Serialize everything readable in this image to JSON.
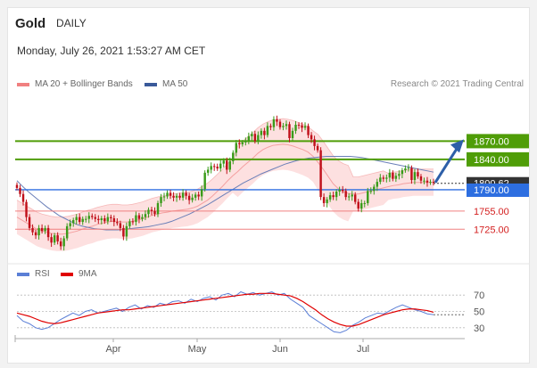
{
  "header": {
    "instrument": "Gold",
    "period": "DAILY",
    "datetime": "Monday, July 26, 2021 1:53:27 AM CET",
    "credit": "Research © 2021 Trading Central"
  },
  "legend_main": [
    {
      "label": "MA 20 + Bollinger Bands",
      "color": "#f08080"
    },
    {
      "label": "MA 50",
      "color": "#3a5a9a"
    }
  ],
  "legend_rsi": [
    {
      "label": "RSI",
      "color": "#5b7fd6"
    },
    {
      "label": "9MA",
      "color": "#e00000"
    }
  ],
  "colors": {
    "up_candle": "#3a9b1a",
    "down_candle": "#c0101a",
    "bollinger_fill": "#fde0e0",
    "resistance": "#4f9d07",
    "pivot": "#2d6ee0",
    "support": "#f08080",
    "support_text": "#d42020",
    "current_price_bg": "#333333",
    "arrow": "#2d5fa8"
  },
  "chart_data": [
    {
      "type": "candlestick",
      "title": "Gold DAILY",
      "x_labels": [
        "Apr",
        "May",
        "Jun",
        "Jul"
      ],
      "ylim": [
        1677,
        1941
      ],
      "levels": [
        {
          "value": 1870.0,
          "label": "1870.00",
          "kind": "resistance"
        },
        {
          "value": 1840.0,
          "label": "1840.00",
          "kind": "resistance"
        },
        {
          "value": 1800.62,
          "label": "1800.62",
          "kind": "current"
        },
        {
          "value": 1790.0,
          "label": "1790.00",
          "kind": "pivot"
        },
        {
          "value": 1755.0,
          "label": "1755.00",
          "kind": "support"
        },
        {
          "value": 1725.0,
          "label": "1725.00",
          "kind": "support"
        }
      ],
      "close": [
        1793,
        1783,
        1770,
        1745,
        1727,
        1720,
        1715,
        1727,
        1722,
        1727,
        1712,
        1703,
        1715,
        1705,
        1697,
        1710,
        1730,
        1735,
        1740,
        1745,
        1737,
        1742,
        1742,
        1747,
        1745,
        1742,
        1740,
        1743,
        1738,
        1745,
        1743,
        1737,
        1735,
        1727,
        1713,
        1730,
        1738,
        1737,
        1748,
        1742,
        1745,
        1750,
        1757,
        1755,
        1750,
        1768,
        1778,
        1779,
        1785,
        1780,
        1777,
        1780,
        1777,
        1785,
        1780,
        1773,
        1777,
        1782,
        1779,
        1791,
        1818,
        1823,
        1829,
        1828,
        1825,
        1833,
        1838,
        1823,
        1837,
        1851,
        1867,
        1865,
        1868,
        1871,
        1878,
        1882,
        1870,
        1880,
        1887,
        1880,
        1895,
        1893,
        1906,
        1902,
        1893,
        1895,
        1898,
        1875,
        1887,
        1897,
        1896,
        1892,
        1895,
        1880,
        1873,
        1862,
        1855,
        1778,
        1768,
        1774,
        1781,
        1778,
        1787,
        1790,
        1788,
        1778,
        1779,
        1782,
        1770,
        1759,
        1768,
        1768,
        1788,
        1788,
        1795,
        1803,
        1810,
        1808,
        1810,
        1818,
        1808,
        1813,
        1816,
        1822,
        1825,
        1826,
        1806,
        1819,
        1812,
        1805,
        1805,
        1802,
        1803,
        1802
      ],
      "ma20": [
        1745,
        1740,
        1735,
        1730,
        1725,
        1722,
        1720,
        1718,
        1717,
        1717,
        1718,
        1720,
        1722,
        1725,
        1728,
        1730,
        1733,
        1735,
        1737,
        1738,
        1738,
        1737,
        1737,
        1738,
        1740,
        1742,
        1745,
        1748,
        1750,
        1752,
        1753,
        1755,
        1756,
        1757,
        1758,
        1760,
        1763,
        1768,
        1773,
        1780,
        1788,
        1796,
        1805,
        1813,
        1820,
        1828,
        1835,
        1842,
        1850,
        1856,
        1860,
        1863,
        1864,
        1865,
        1864,
        1862,
        1859,
        1856,
        1852,
        1845,
        1835,
        1824,
        1812,
        1800,
        1792,
        1787,
        1784,
        1783,
        1783,
        1785,
        1787,
        1789,
        1791,
        1793,
        1795,
        1797,
        1798,
        1800,
        1801,
        1802,
        1802,
        1802,
        1802,
        1802
      ],
      "ma50": [
        1805,
        1795,
        1786,
        1778,
        1770,
        1762,
        1755,
        1748,
        1743,
        1738,
        1733,
        1730,
        1728,
        1726,
        1725,
        1724,
        1724,
        1724,
        1725,
        1726,
        1727,
        1728,
        1729,
        1731,
        1733,
        1735,
        1738,
        1742,
        1746,
        1750,
        1755,
        1760,
        1765,
        1771,
        1777,
        1783,
        1789,
        1795,
        1801,
        1806,
        1811,
        1816,
        1820,
        1824,
        1828,
        1832,
        1835,
        1838,
        1840,
        1842,
        1843,
        1844,
        1845,
        1845,
        1845,
        1845,
        1845,
        1844,
        1843,
        1841,
        1839,
        1837,
        1835,
        1833,
        1831,
        1829,
        1827,
        1825,
        1823,
        1821,
        1819
      ]
    },
    {
      "type": "line",
      "title": "RSI",
      "x_labels": [
        "Apr",
        "May",
        "Jun",
        "Jul"
      ],
      "y_ticks": [
        30,
        50,
        70
      ],
      "ylim": [
        20,
        80
      ],
      "series": [
        {
          "name": "RSI",
          "values": [
            45,
            38,
            35,
            30,
            28,
            30,
            35,
            40,
            44,
            48,
            45,
            50,
            52,
            48,
            50,
            52,
            54,
            50,
            55,
            58,
            53,
            57,
            55,
            60,
            58,
            62,
            63,
            60,
            65,
            62,
            66,
            68,
            64,
            70,
            72,
            68,
            74,
            71,
            73,
            70,
            72,
            74,
            70,
            72,
            65,
            60,
            55,
            45,
            40,
            35,
            30,
            25,
            24,
            27,
            33,
            37,
            42,
            45,
            48,
            47,
            51,
            55,
            58,
            55,
            52,
            50,
            47,
            46
          ]
        },
        {
          "name": "9MA",
          "values": [
            48,
            46,
            44,
            41,
            38,
            36,
            35,
            36,
            38,
            40,
            42,
            44,
            46,
            48,
            49,
            50,
            51,
            52,
            52,
            53,
            54,
            55,
            56,
            57,
            58,
            59,
            60,
            61,
            62,
            63,
            64,
            65,
            66,
            67,
            68,
            69,
            70,
            71,
            71,
            72,
            72,
            72,
            71,
            70,
            69,
            66,
            62,
            57,
            52,
            46,
            41,
            37,
            34,
            32,
            32,
            34,
            37,
            40,
            43,
            46,
            48,
            50,
            52,
            53,
            53,
            52,
            51,
            49
          ]
        }
      ]
    }
  ]
}
